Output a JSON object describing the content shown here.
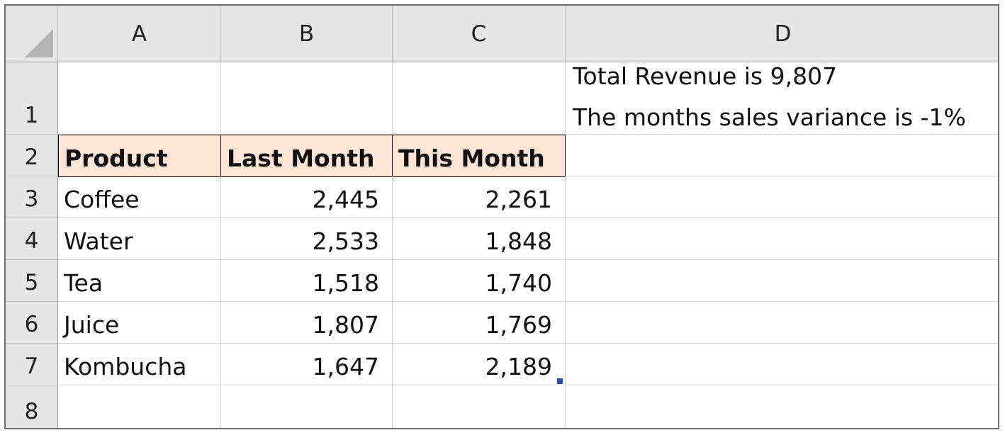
{
  "spreadsheet": {
    "columns": [
      "A",
      "B",
      "C",
      "D"
    ],
    "rows": [
      "1",
      "2",
      "3",
      "4",
      "5",
      "6",
      "7",
      "8"
    ],
    "headers": {
      "product": "Product",
      "last_month": "Last Month",
      "this_month": "This Month"
    },
    "data": [
      {
        "product": "Coffee",
        "last": "2,445",
        "this": "2,261"
      },
      {
        "product": "Water",
        "last": "2,533",
        "this": "1,848"
      },
      {
        "product": "Tea",
        "last": "1,518",
        "this": "1,740"
      },
      {
        "product": "Juice",
        "last": "1,807",
        "this": "1,769"
      },
      {
        "product": "Kombucha",
        "last": "1,647",
        "this": "2,189"
      }
    ],
    "d1_line1": "Total Revenue is 9,807",
    "d1_line2": "The months sales variance is -1%"
  },
  "colors": {
    "header_fill": "#fce4d6",
    "fill_handle": "#2c4ea3"
  }
}
